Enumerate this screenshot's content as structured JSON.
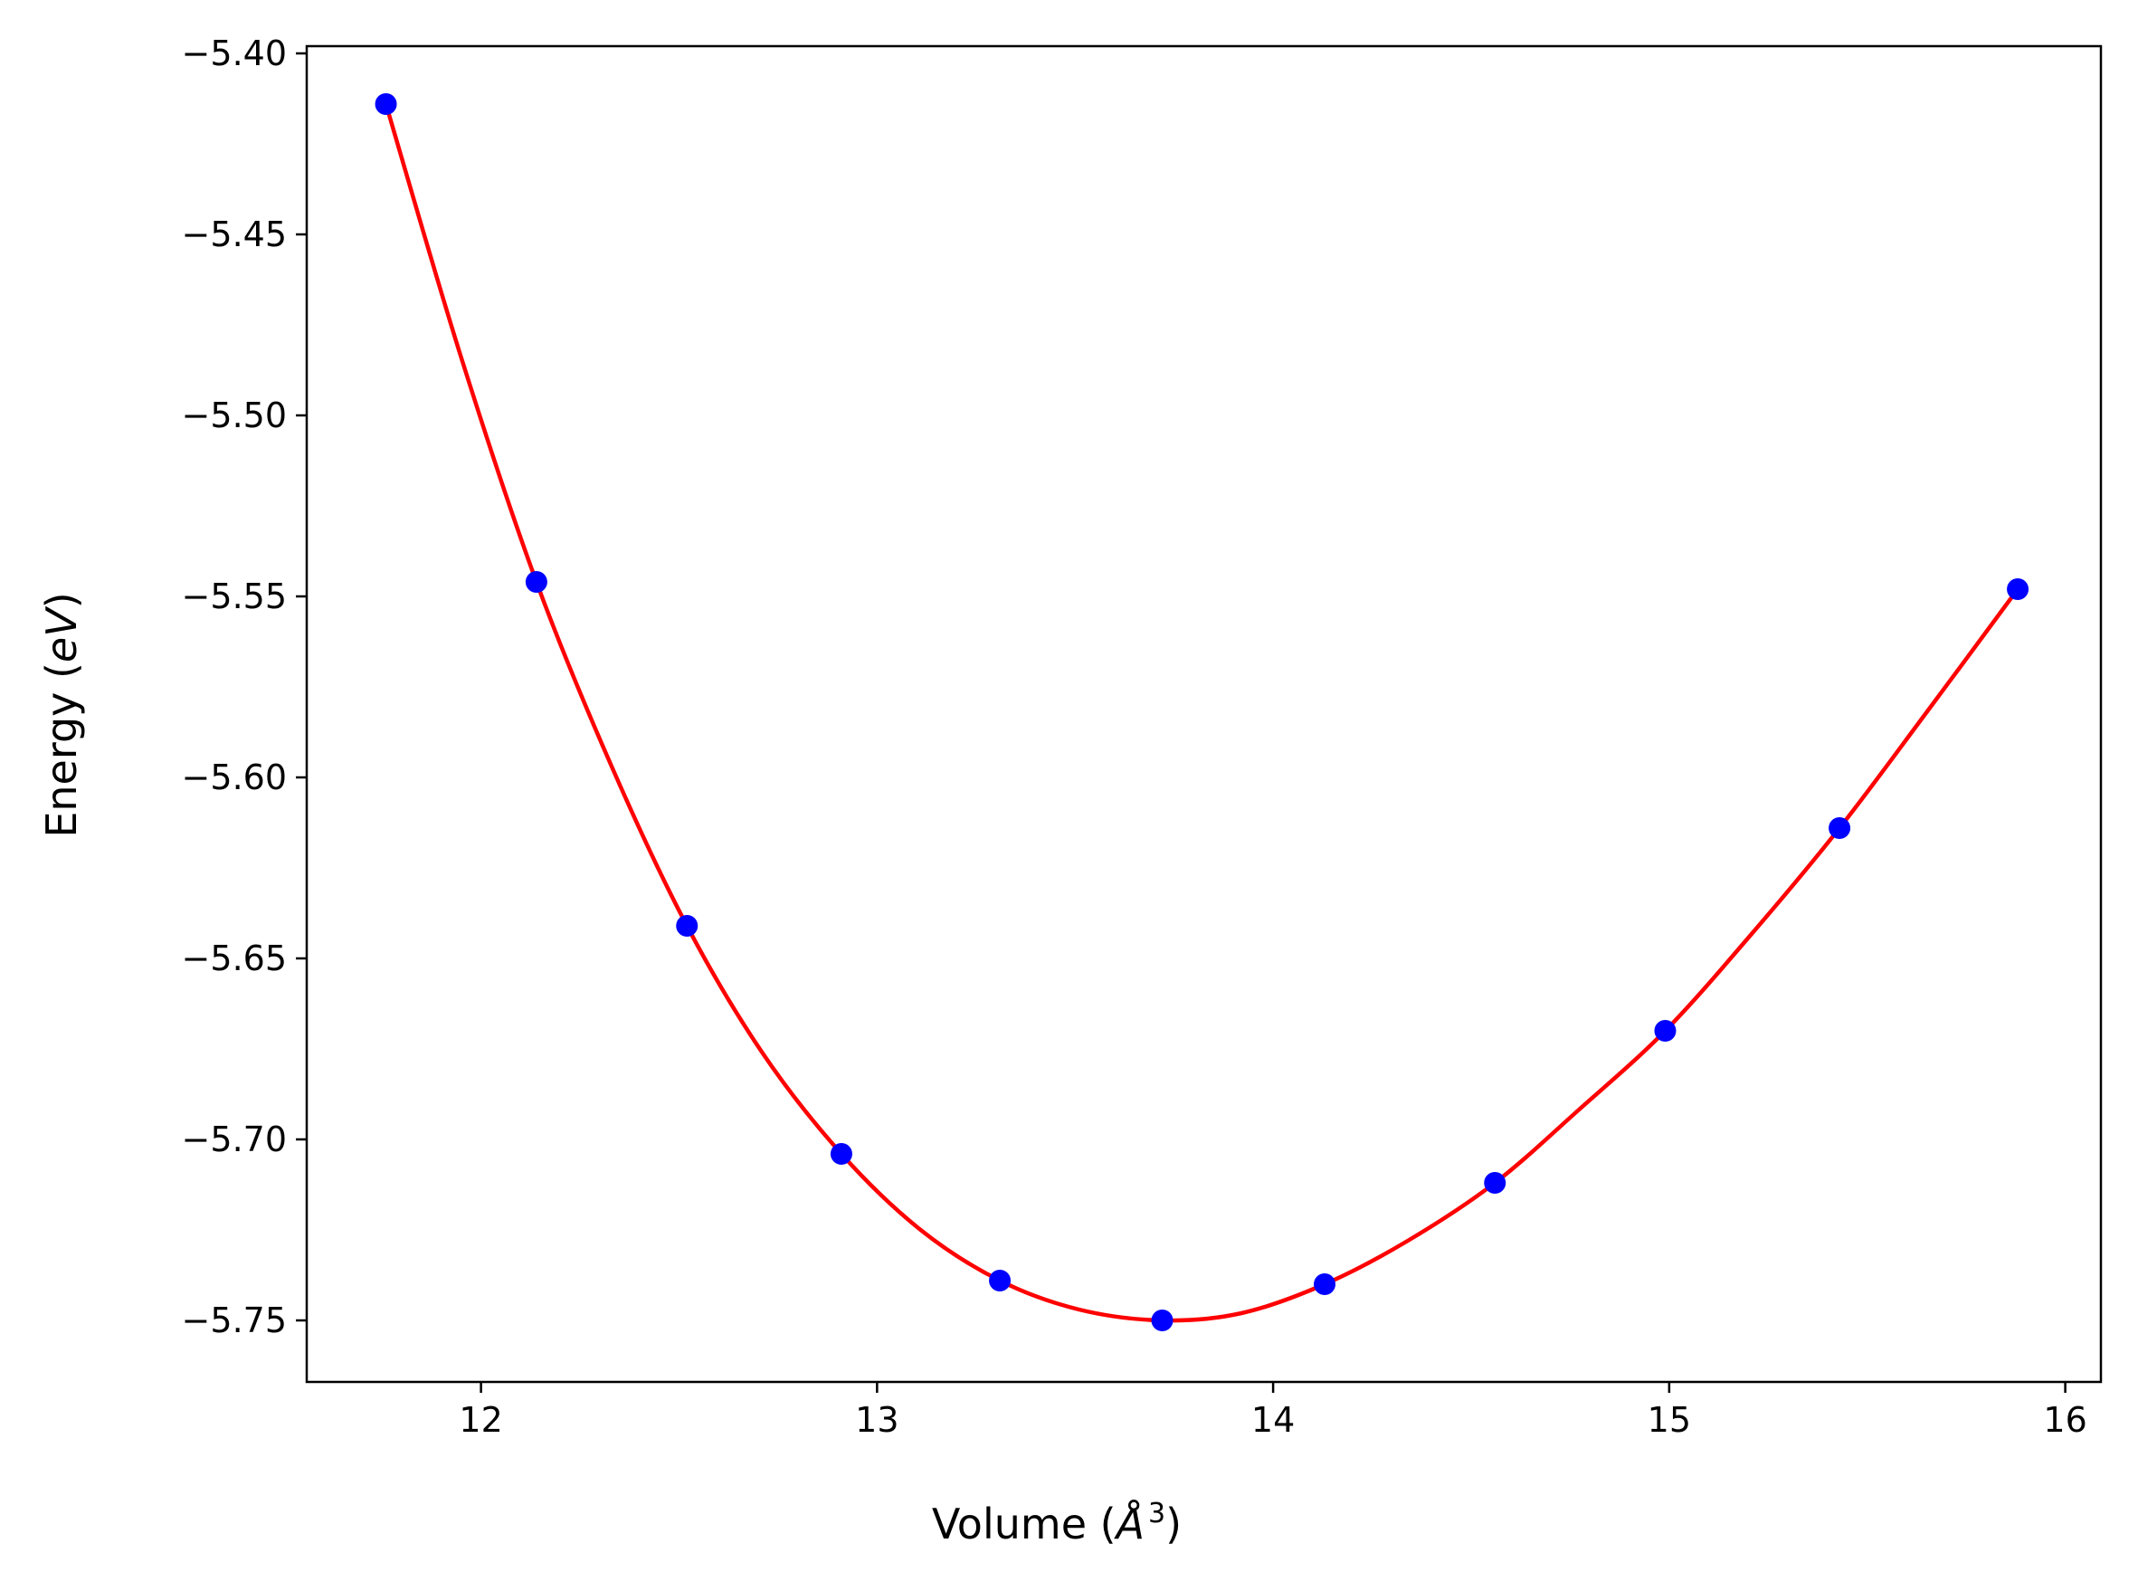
{
  "chart_data": {
    "type": "scatter",
    "title": "",
    "xlabel_main": "Volume (",
    "xlabel_symbol": "Å",
    "xlabel_sup": "3",
    "xlabel_close": ")",
    "ylabel_main": "Energy (",
    "ylabel_italic": "eV",
    "ylabel_close": ")",
    "xlim": [
      11.56,
      16.09
    ],
    "ylim": [
      -5.767,
      -5.398
    ],
    "xticks": [
      12,
      13,
      14,
      15,
      16
    ],
    "xtick_labels": [
      "12",
      "13",
      "14",
      "15",
      "16"
    ],
    "yticks": [
      -5.4,
      -5.45,
      -5.5,
      -5.55,
      -5.6,
      -5.65,
      -5.7,
      -5.75
    ],
    "ytick_labels": [
      "−5.40",
      "−5.45",
      "−5.50",
      "−5.55",
      "−5.60",
      "−5.65",
      "−5.70",
      "−5.75"
    ],
    "grid": false,
    "series": [
      {
        "kind": "points",
        "color": "#0000ff",
        "x": [
          11.76,
          12.14,
          12.52,
          12.91,
          13.31,
          13.72,
          14.13,
          14.56,
          14.99,
          15.43,
          15.88
        ],
        "y": [
          -5.414,
          -5.546,
          -5.641,
          -5.704,
          -5.739,
          -5.75,
          -5.74,
          -5.712,
          -5.67,
          -5.614,
          -5.548
        ]
      },
      {
        "kind": "fit-curve",
        "color": "#ff0000",
        "x": [
          11.76,
          11.95,
          12.14,
          12.33,
          12.52,
          12.71,
          12.91,
          13.11,
          13.31,
          13.51,
          13.72,
          13.92,
          14.13,
          14.34,
          14.56,
          14.77,
          14.99,
          15.21,
          15.43,
          15.65,
          15.88
        ],
        "y": [
          -5.414,
          -5.484,
          -5.546,
          -5.597,
          -5.641,
          -5.676,
          -5.704,
          -5.725,
          -5.739,
          -5.747,
          -5.75,
          -5.748,
          -5.74,
          -5.728,
          -5.712,
          -5.692,
          -5.67,
          -5.643,
          -5.614,
          -5.582,
          -5.548
        ]
      }
    ]
  }
}
